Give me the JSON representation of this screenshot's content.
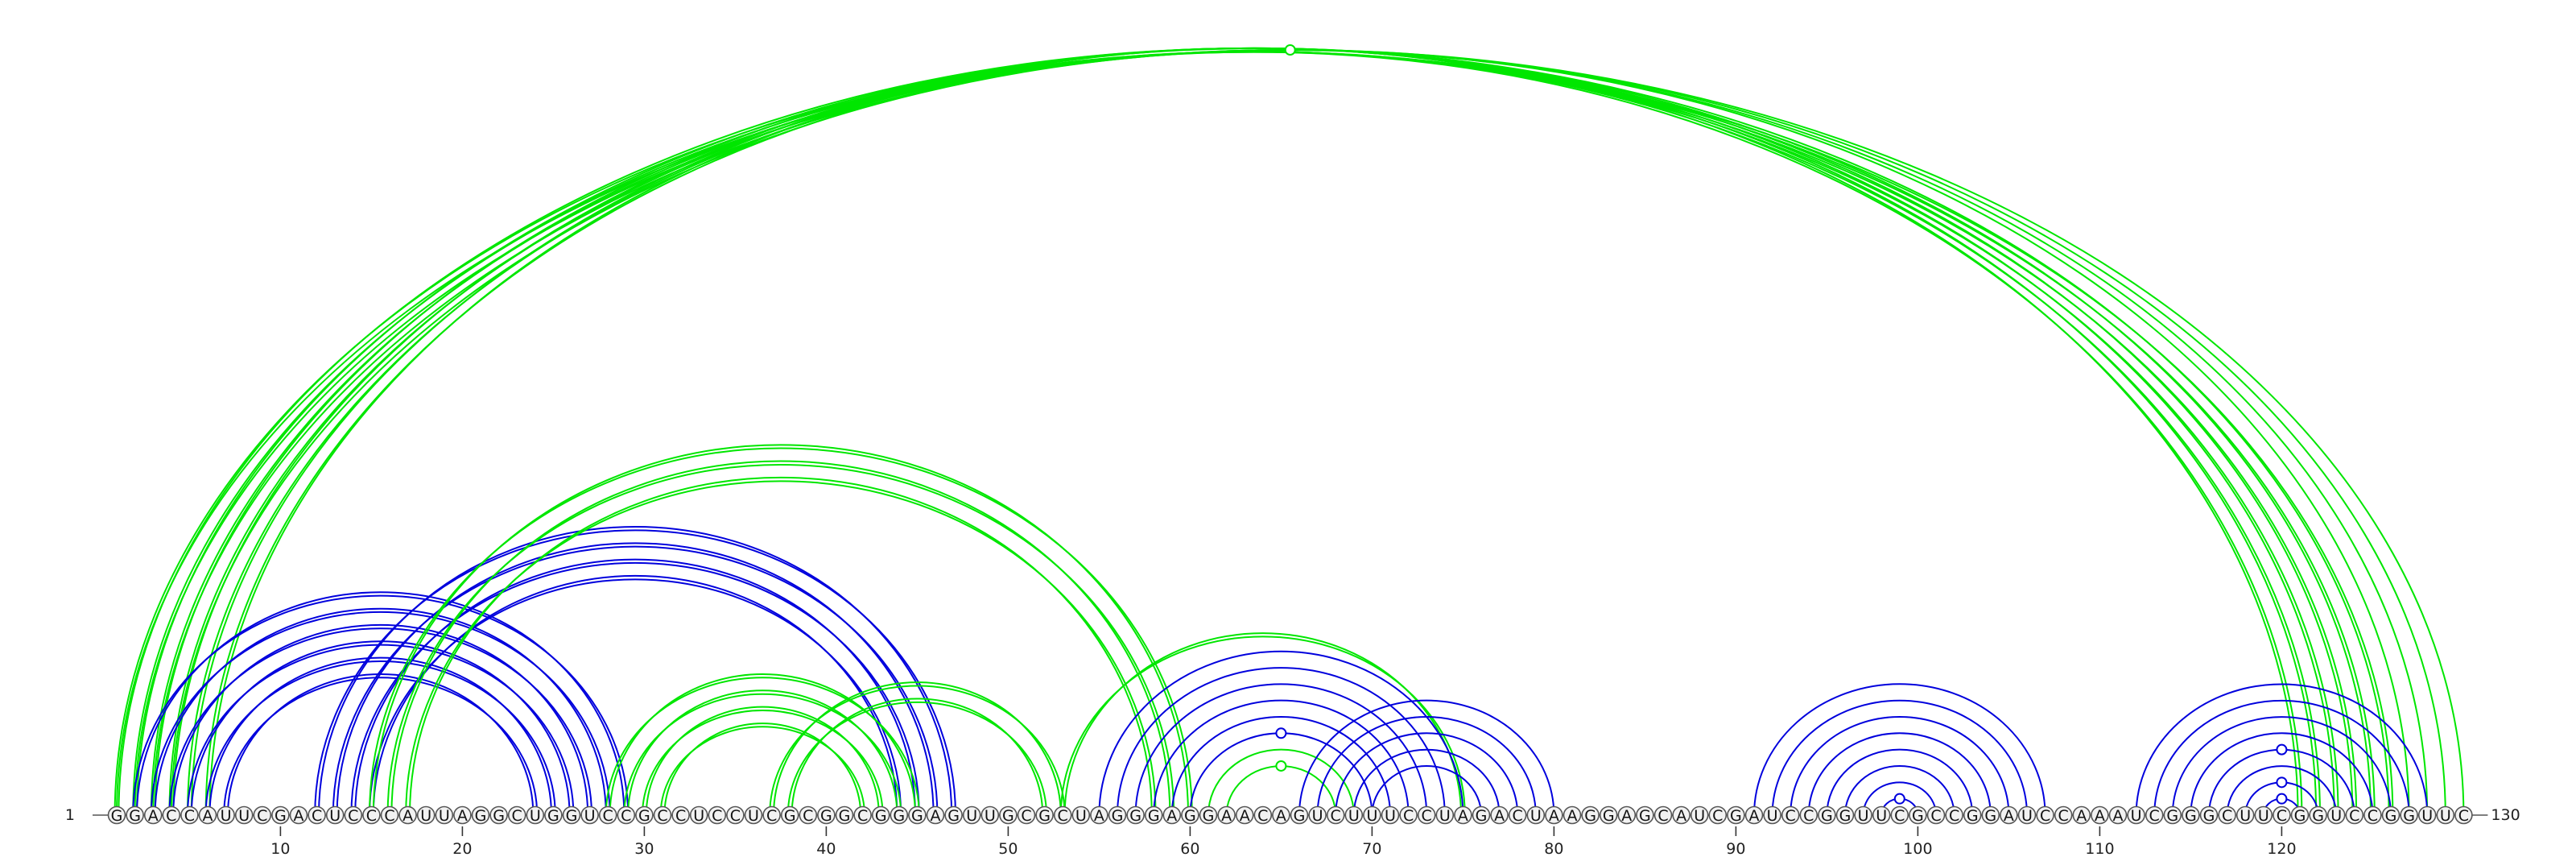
{
  "sequence": "GGACCAUUCGACUCCCAUUAGGCUGGUCCGCCUCCUCGCGGCGGGAGUUGCGCUAGGGAGGAACAGUCUUUCCUAGACUAAGGAGCAUCGAUCCGGUUCGCCGGAUCCAAAUCGGGCUUCGGUCCGGUUC",
  "start_label": "1",
  "end_label": "130",
  "ticks": [
    10,
    20,
    30,
    40,
    50,
    60,
    70,
    80,
    90,
    100,
    110,
    120
  ],
  "colors": {
    "green": "#00e600",
    "blue": "#0000dd"
  },
  "arc_groups": [
    {
      "color": "green",
      "style": "double",
      "pairs": [
        [
          1,
          126
        ],
        [
          2,
          125
        ],
        [
          3,
          124
        ],
        [
          4,
          123
        ],
        [
          5,
          122
        ],
        [
          6,
          121
        ]
      ]
    },
    {
      "color": "green",
      "style": "single",
      "pairs": [
        [
          1,
          130
        ],
        [
          2,
          129
        ],
        [
          3,
          128
        ],
        [
          4,
          127
        ]
      ]
    },
    {
      "color": "blue",
      "style": "double",
      "pairs": [
        [
          2,
          29
        ],
        [
          3,
          28
        ],
        [
          4,
          27
        ],
        [
          5,
          26
        ],
        [
          6,
          25
        ],
        [
          7,
          24
        ]
      ]
    },
    {
      "color": "blue",
      "style": "double",
      "pairs": [
        [
          12,
          47
        ],
        [
          13,
          46
        ],
        [
          14,
          45
        ],
        [
          15,
          44
        ]
      ]
    },
    {
      "color": "green",
      "style": "double",
      "pairs": [
        [
          15,
          60
        ],
        [
          16,
          59
        ],
        [
          17,
          58
        ]
      ]
    },
    {
      "color": "green",
      "style": "double",
      "pairs": [
        [
          28,
          45
        ],
        [
          29,
          44
        ],
        [
          30,
          43
        ],
        [
          31,
          42
        ]
      ]
    },
    {
      "color": "green",
      "style": "double",
      "pairs": [
        [
          37,
          53
        ],
        [
          38,
          52
        ]
      ]
    },
    {
      "color": "green",
      "style": "double",
      "pairs": [
        [
          53,
          75
        ]
      ]
    },
    {
      "color": "blue",
      "style": "single",
      "pairs": [
        [
          55,
          75
        ],
        [
          56,
          74
        ],
        [
          57,
          73
        ],
        [
          58,
          72
        ],
        [
          59,
          71
        ],
        [
          60,
          70
        ]
      ]
    },
    {
      "color": "green",
      "style": "single",
      "pairs": [
        [
          61,
          69
        ],
        [
          62,
          68
        ]
      ]
    },
    {
      "color": "blue",
      "style": "single",
      "pairs": [
        [
          66,
          80
        ],
        [
          67,
          79
        ],
        [
          68,
          78
        ],
        [
          69,
          77
        ],
        [
          70,
          76
        ]
      ]
    },
    {
      "color": "blue",
      "style": "single",
      "pairs": [
        [
          91,
          107
        ],
        [
          92,
          106
        ],
        [
          93,
          105
        ],
        [
          94,
          104
        ],
        [
          95,
          103
        ],
        [
          96,
          102
        ],
        [
          97,
          101
        ],
        [
          98,
          100
        ]
      ]
    },
    {
      "color": "blue",
      "style": "single",
      "pairs": [
        [
          112,
          128
        ],
        [
          113,
          127
        ],
        [
          114,
          126
        ],
        [
          115,
          125
        ],
        [
          116,
          124
        ],
        [
          117,
          123
        ],
        [
          118,
          122
        ],
        [
          119,
          121
        ]
      ]
    }
  ],
  "markers": [
    {
      "color": "green",
      "i": 4,
      "j": 127
    },
    {
      "color": "blue",
      "i": 60,
      "j": 70
    },
    {
      "color": "green",
      "i": 62,
      "j": 68
    },
    {
      "color": "blue",
      "i": 98,
      "j": 100
    },
    {
      "color": "blue",
      "i": 116,
      "j": 124
    },
    {
      "color": "blue",
      "i": 118,
      "j": 122
    },
    {
      "color": "blue",
      "i": 119,
      "j": 121
    }
  ]
}
